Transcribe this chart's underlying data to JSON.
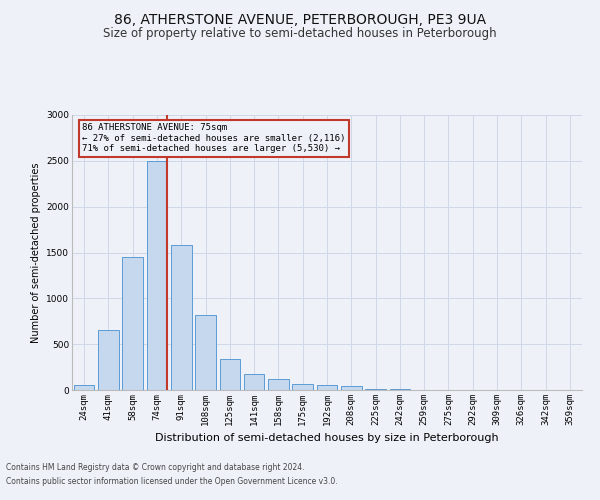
{
  "title": "86, ATHERSTONE AVENUE, PETERBOROUGH, PE3 9UA",
  "subtitle": "Size of property relative to semi-detached houses in Peterborough",
  "xlabel": "Distribution of semi-detached houses by size in Peterborough",
  "ylabel": "Number of semi-detached properties",
  "categories": [
    "24sqm",
    "41sqm",
    "58sqm",
    "74sqm",
    "91sqm",
    "108sqm",
    "125sqm",
    "141sqm",
    "158sqm",
    "175sqm",
    "192sqm",
    "208sqm",
    "225sqm",
    "242sqm",
    "259sqm",
    "275sqm",
    "292sqm",
    "309sqm",
    "326sqm",
    "342sqm",
    "359sqm"
  ],
  "values": [
    50,
    650,
    1450,
    2500,
    1580,
    820,
    340,
    175,
    120,
    70,
    55,
    40,
    15,
    10,
    5,
    5,
    3,
    2,
    2,
    2,
    2
  ],
  "bar_color": "#c5d8ed",
  "bar_edge_color": "#5b9bd5",
  "highlight_index": 3,
  "highlight_line_color": "#c0392b",
  "annotation_text1": "86 ATHERSTONE AVENUE: 75sqm",
  "annotation_text2": "← 27% of semi-detached houses are smaller (2,116)",
  "annotation_text3": "71% of semi-detached houses are larger (5,530) →",
  "annotation_box_color": "#c0392b",
  "grid_color": "#d0d8e8",
  "ylim": [
    0,
    3000
  ],
  "yticks": [
    0,
    500,
    1000,
    1500,
    2000,
    2500,
    3000
  ],
  "footnote1": "Contains HM Land Registry data © Crown copyright and database right 2024.",
  "footnote2": "Contains public sector information licensed under the Open Government Licence v3.0.",
  "background_color": "#eef2f8",
  "title_fontsize": 10,
  "subtitle_fontsize": 8.5,
  "xlabel_fontsize": 8,
  "ylabel_fontsize": 7,
  "tick_fontsize": 6.5,
  "footnote_fontsize": 5.5
}
